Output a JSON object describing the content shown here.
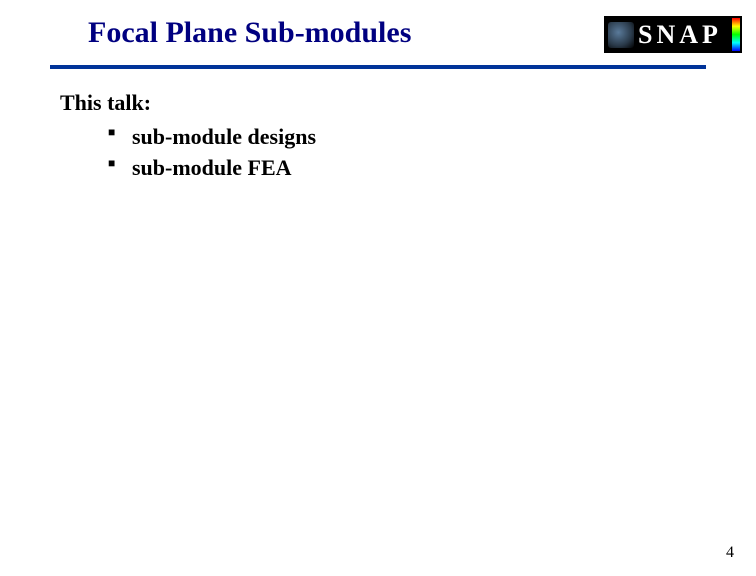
{
  "slide": {
    "title": "Focal Plane Sub-modules",
    "title_color": "#000080",
    "title_fontsize": 30,
    "divider_color": "#003399",
    "background_color": "#ffffff",
    "logo": {
      "text": "SNAP",
      "text_color": "#ffffff",
      "bg_color": "#000000",
      "spectrum_colors": [
        "#ff0000",
        "#ffff00",
        "#00ff00",
        "#00ffff",
        "#0000ff"
      ]
    },
    "content": {
      "intro": "This talk:",
      "intro_fontsize": 22,
      "bullets": [
        "sub-module designs",
        "sub-module FEA"
      ],
      "bullet_fontsize": 22,
      "bullet_marker": "■",
      "text_color": "#000000"
    },
    "page_number": "4",
    "page_number_fontsize": 16
  }
}
